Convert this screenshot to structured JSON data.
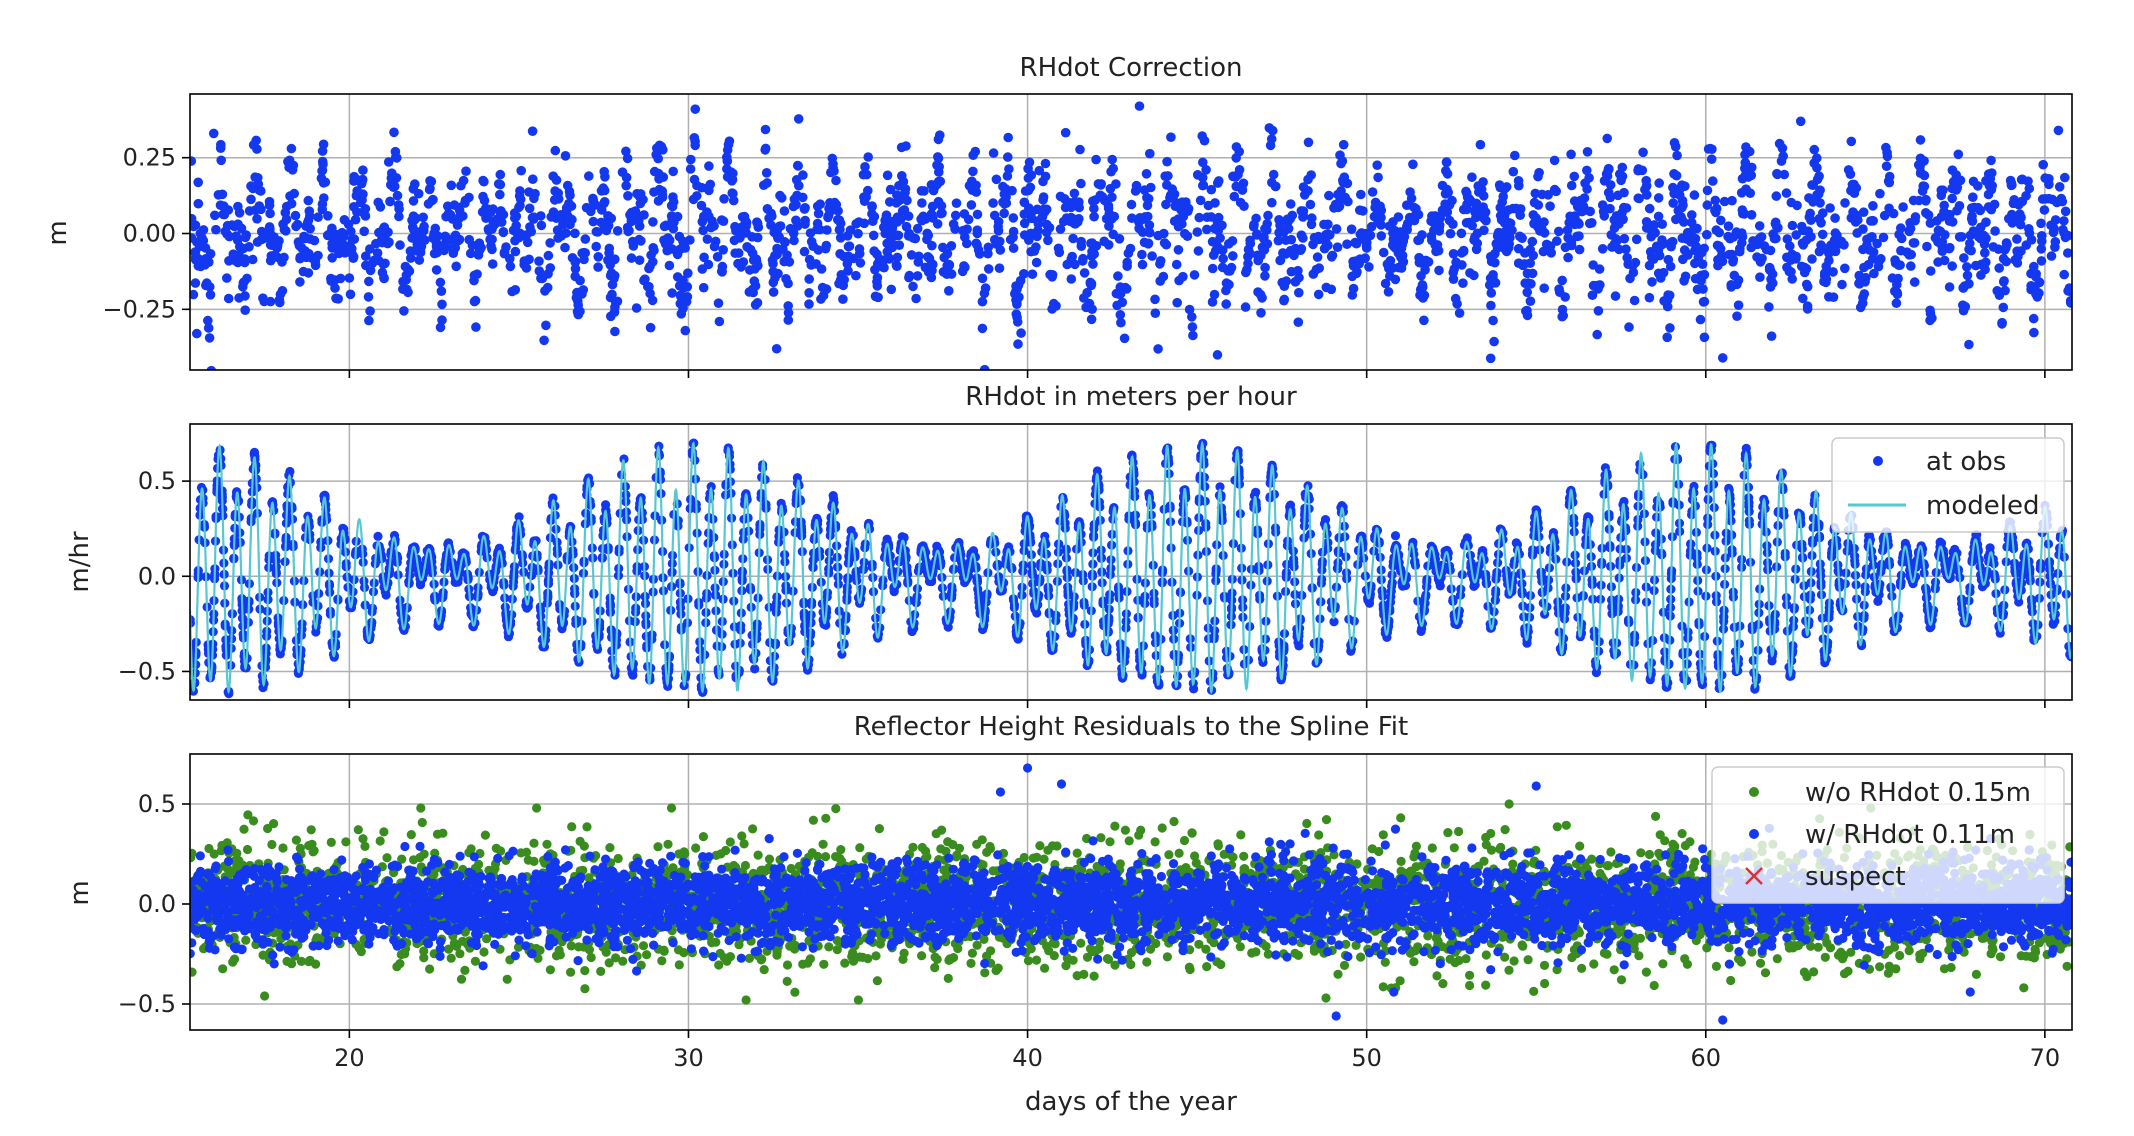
{
  "colors": {
    "obs_blue": "#1338f0",
    "modeled_cyan": "#55c8d2",
    "green": "#3a8c1f",
    "suspect_red": "#e03030",
    "grid": "#b0b0b0"
  },
  "chart_data": [
    {
      "type": "scatter",
      "title": "RHdot Correction",
      "ylabel": "m",
      "xlabel": "",
      "xlim": [
        15.3,
        70.8
      ],
      "ylim": [
        -0.45,
        0.46
      ],
      "xticks": [
        20,
        30,
        40,
        50,
        60,
        70
      ],
      "yticks": [
        0.25,
        0.0,
        -0.25
      ],
      "ytick_labels": [
        "0.25",
        "0.00",
        "−0.25"
      ],
      "grid": true,
      "legend": null,
      "series": [
        {
          "color": "#1338f0",
          "description": "dense scatter of RHdot correction, mostly within ±0.25 m",
          "amplitude_envelope": {
            "x": [
              15.3,
              20,
              25,
              30,
              35,
              40,
              45,
              50,
              55,
              60,
              65,
              70.8
            ],
            "amp": [
              0.24,
              0.2,
              0.2,
              0.25,
              0.2,
              0.24,
              0.25,
              0.15,
              0.22,
              0.24,
              0.22,
              0.24
            ]
          },
          "outliers": [
            {
              "x": 30.2,
              "y": 0.41
            },
            {
              "x": 43.3,
              "y": 0.42
            },
            {
              "x": 62.8,
              "y": 0.37
            },
            {
              "x": 70.4,
              "y": 0.34
            },
            {
              "x": 16.0,
              "y": 0.33
            },
            {
              "x": 45.6,
              "y": -0.4
            },
            {
              "x": 60.5,
              "y": -0.41
            },
            {
              "x": 32.6,
              "y": -0.38
            },
            {
              "x": 15.5,
              "y": -0.33
            }
          ]
        }
      ]
    },
    {
      "type": "line",
      "title": "RHdot in meters per hour",
      "ylabel": "m/hr",
      "xlabel": "",
      "xlim": [
        15.3,
        70.8
      ],
      "ylim": [
        -0.65,
        0.8
      ],
      "xticks": [
        20,
        30,
        40,
        50,
        60,
        70
      ],
      "yticks": [
        0.5,
        0.0,
        -0.5
      ],
      "ytick_labels": [
        "0.5",
        "0.0",
        "−0.5"
      ],
      "grid": true,
      "legend": {
        "placement": "upper right"
      },
      "series": [
        {
          "name": "at obs",
          "marker": "dot",
          "color": "#1338f0"
        },
        {
          "name": "modeled",
          "marker": "line",
          "color": "#55c8d2"
        }
      ],
      "tidal_model": {
        "semidiurnal_period_days": 0.5175,
        "diurnal_period_days": 1.0,
        "spring_neap_period_days": 14.76,
        "amplitude_range_mhr": [
          0.05,
          0.7
        ]
      }
    },
    {
      "type": "scatter",
      "title": "Reflector Height Residuals to the Spline Fit",
      "ylabel": "m",
      "xlabel": "days of the year",
      "xlim": [
        15.3,
        70.8
      ],
      "ylim": [
        -0.63,
        0.75
      ],
      "xticks": [
        20,
        30,
        40,
        50,
        60,
        70
      ],
      "xtick_labels": [
        "20",
        "30",
        "40",
        "50",
        "60",
        "70"
      ],
      "yticks": [
        0.5,
        0.0,
        -0.5
      ],
      "ytick_labels": [
        "0.5",
        "0.0",
        "−0.5"
      ],
      "grid": true,
      "legend": {
        "placement": "upper right"
      },
      "series": [
        {
          "name": "w/o RHdot 0.15m",
          "marker": "dot",
          "color": "#3a8c1f",
          "spread_m": 0.2
        },
        {
          "name": "w/ RHdot 0.11m",
          "marker": "dot",
          "color": "#1338f0",
          "spread_m": 0.18
        },
        {
          "name": "suspect",
          "marker": "x",
          "color": "#e03030"
        }
      ],
      "outliers": [
        {
          "x": 40.0,
          "y": 0.68,
          "series": 1
        },
        {
          "x": 39.2,
          "y": 0.56,
          "series": 1
        },
        {
          "x": 41.0,
          "y": 0.6,
          "series": 1
        },
        {
          "x": 55.0,
          "y": 0.59,
          "series": 1
        },
        {
          "x": 49.1,
          "y": -0.56,
          "series": 1
        },
        {
          "x": 60.5,
          "y": -0.58,
          "series": 1
        },
        {
          "x": 67.8,
          "y": -0.44,
          "series": 1
        },
        {
          "x": 50.8,
          "y": -0.44,
          "series": 1
        },
        {
          "x": 29.5,
          "y": 0.48,
          "series": 0
        },
        {
          "x": 54.2,
          "y": 0.5,
          "series": 0
        },
        {
          "x": 48.8,
          "y": -0.47,
          "series": 0
        },
        {
          "x": 17.5,
          "y": -0.46,
          "series": 0
        }
      ]
    }
  ]
}
